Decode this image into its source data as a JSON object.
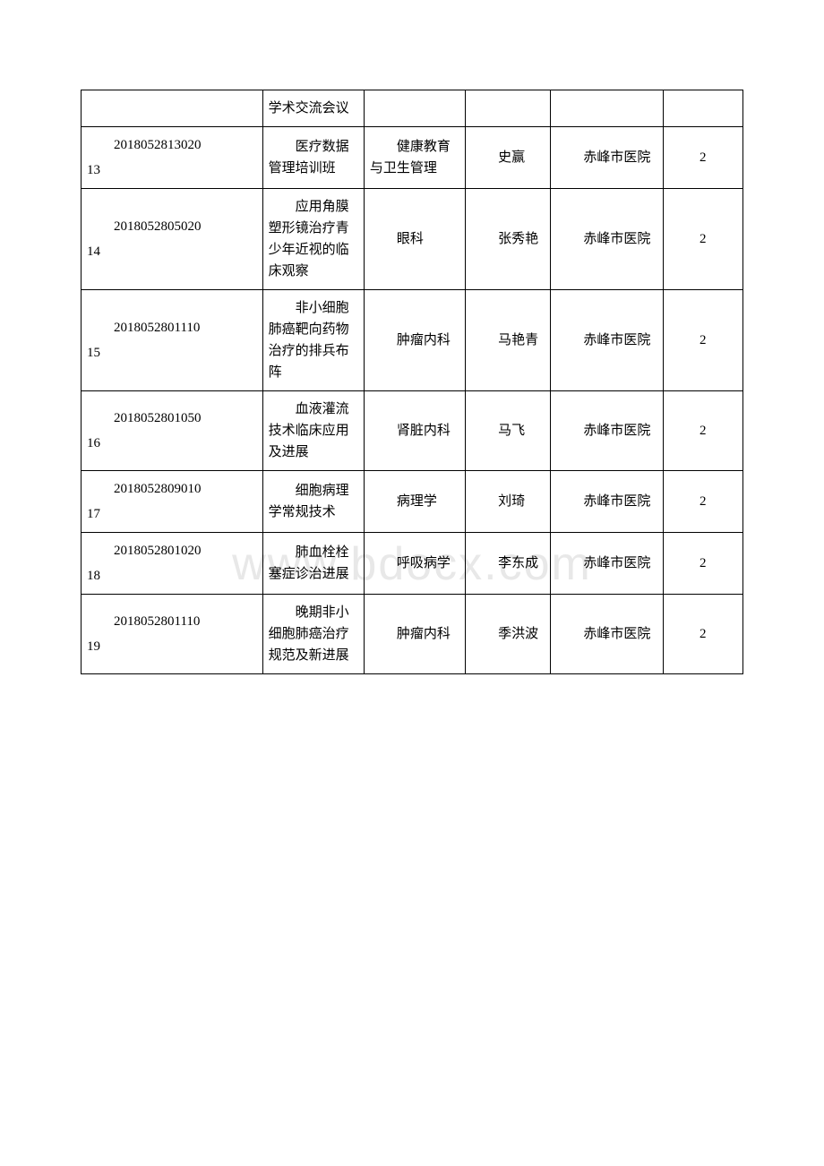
{
  "watermark": "www.bdocx.com",
  "rows": [
    {
      "id": "",
      "rownum": "",
      "title": "学术交流会议",
      "dept": "",
      "person": "",
      "hospital": "",
      "num": ""
    },
    {
      "id": "2018052813020",
      "rownum": "13",
      "title": "　　医疗数据管理培训班",
      "dept": "　　健康教育与卫生管理",
      "person": "　　史赢",
      "hospital": "　　赤峰市医院",
      "num": "2"
    },
    {
      "id": "2018052805020",
      "rownum": "14",
      "title": "　　应用角膜塑形镜治疗青少年近视的临床观察",
      "dept": "　　眼科",
      "person": "　　张秀艳",
      "hospital": "　　赤峰市医院",
      "num": "2"
    },
    {
      "id": "2018052801110",
      "rownum": "15",
      "title": "　　非小细胞肺癌靶向药物治疗的排兵布阵",
      "dept": "　　肿瘤内科",
      "person": "　　马艳青",
      "hospital": "　　赤峰市医院",
      "num": "2"
    },
    {
      "id": "2018052801050",
      "rownum": "16",
      "title": "　　血液灌流技术临床应用及进展",
      "dept": "　　肾脏内科",
      "person": "　　马飞",
      "hospital": "　　赤峰市医院",
      "num": "2"
    },
    {
      "id": "2018052809010",
      "rownum": "17",
      "title": "　　细胞病理学常规技术",
      "dept": "　　病理学",
      "person": "　　刘琦",
      "hospital": "　　赤峰市医院",
      "num": "2"
    },
    {
      "id": "2018052801020",
      "rownum": "18",
      "title": "　　肺血栓栓塞症诊治进展",
      "dept": "　　呼吸病学",
      "person": "　　李东成",
      "hospital": "　　赤峰市医院",
      "num": "2"
    },
    {
      "id": "2018052801110",
      "rownum": "19",
      "title": "　　晚期非小细胞肺癌治疗规范及新进展",
      "dept": "　　肿瘤内科",
      "person": "　　季洪波",
      "hospital": "　　赤峰市医院",
      "num": "2"
    }
  ]
}
